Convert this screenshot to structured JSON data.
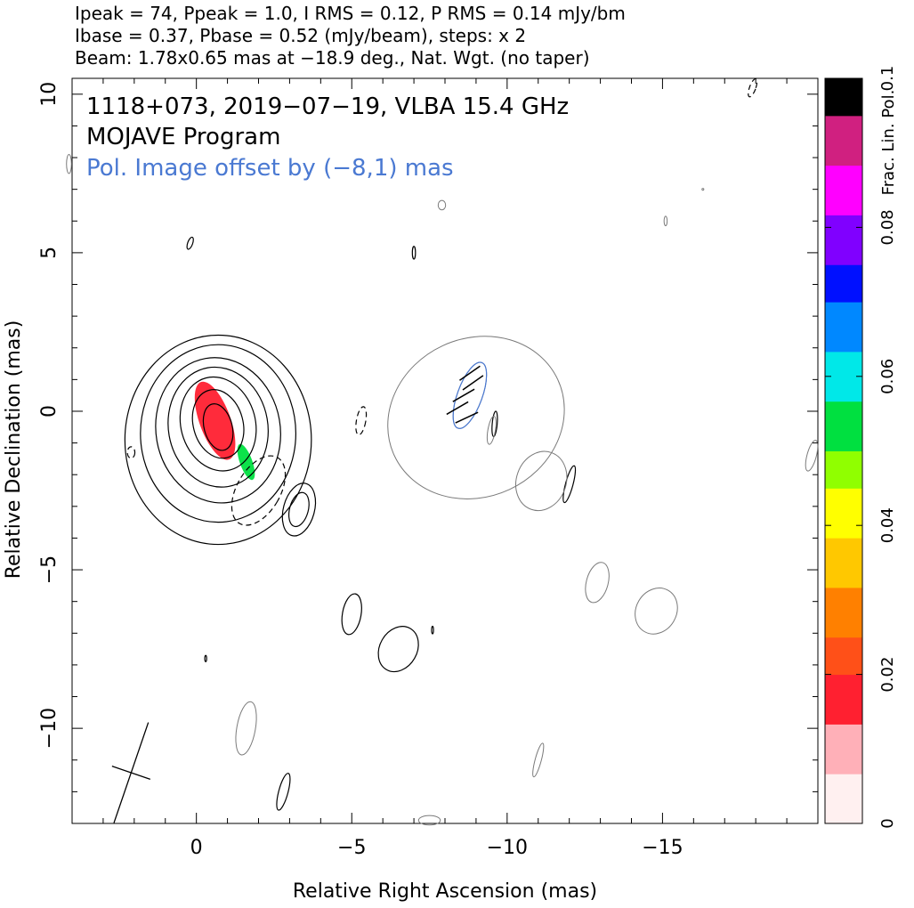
{
  "header": {
    "line1": "Ipeak = 74, Ppeak = 1.0, I RMS = 0.12, P RMS = 0.14 mJy/bm",
    "line2": "Ibase = 0.37, Pbase = 0.52 (mJy/beam), steps: x 2",
    "line3": "Beam: 1.78x0.65 mas at −18.9 deg., Nat. Wgt. (no taper)"
  },
  "chart_data": {
    "type": "contour",
    "annotations": {
      "source": "1118+073, 2019−07−19, VLBA 15.4 GHz",
      "program": "MOJAVE Program",
      "offset_note": "Pol. Image offset by (−8,1) mas"
    },
    "xlabel": "Relative Right Ascension (mas)",
    "ylabel": "Relative Declination (mas)",
    "xlim": [
      4,
      -20
    ],
    "ylim": [
      -13,
      10.5
    ],
    "x_ticks": [
      0,
      -5,
      -10,
      -15
    ],
    "x_tick_labels": [
      "0",
      "−5",
      "−10",
      "−15"
    ],
    "y_ticks": [
      10,
      5,
      0,
      -5,
      -10
    ],
    "y_tick_labels": [
      "10",
      "5",
      "0",
      "−5",
      "−10"
    ],
    "beam": {
      "major_mas": 1.78,
      "minor_mas": 0.65,
      "pa_deg": -18.9
    },
    "stokes_I": {
      "peak_mJy_per_beam": 74,
      "rms": 0.12,
      "base": 0.37,
      "step_factor": 2,
      "contours": [
        {
          "x": -0.7,
          "y": -0.9,
          "rx": 3.0,
          "ry": 3.3,
          "rot": 0
        },
        {
          "x": -0.7,
          "y": -0.7,
          "rx": 2.5,
          "ry": 2.8,
          "rot": 0
        },
        {
          "x": -0.7,
          "y": -0.6,
          "rx": 2.0,
          "ry": 2.3,
          "rot": -10
        },
        {
          "x": -0.7,
          "y": -0.5,
          "rx": 1.6,
          "ry": 1.9,
          "rot": -10
        },
        {
          "x": -0.7,
          "y": -0.4,
          "rx": 1.2,
          "ry": 1.5,
          "rot": -15
        },
        {
          "x": -0.7,
          "y": -0.4,
          "rx": 0.8,
          "ry": 1.1,
          "rot": -15
        },
        {
          "x": -0.7,
          "y": -0.5,
          "rx": 0.45,
          "ry": 0.75,
          "rot": -15
        },
        {
          "x": -3.3,
          "y": -3.1,
          "rx": 0.5,
          "ry": 0.85,
          "rot": 15
        },
        {
          "x": -3.3,
          "y": -3.1,
          "rx": 0.3,
          "ry": 0.55,
          "rot": 15
        },
        {
          "x": -5.0,
          "y": -6.4,
          "rx": 0.3,
          "ry": 0.65,
          "rot": 10
        },
        {
          "x": -6.5,
          "y": -7.5,
          "rx": 0.6,
          "ry": 0.75,
          "rot": 30
        },
        {
          "x": -2.8,
          "y": -12.0,
          "rx": 0.15,
          "ry": 0.6,
          "rot": 15
        },
        {
          "x": -9.6,
          "y": -0.4,
          "rx": 0.08,
          "ry": 0.4,
          "rot": 5
        },
        {
          "x": -12.0,
          "y": -2.3,
          "rx": 0.12,
          "ry": 0.6,
          "rot": 15
        },
        {
          "x": 0.2,
          "y": 5.3,
          "rx": 0.08,
          "ry": 0.2,
          "rot": 20
        },
        {
          "x": -7.0,
          "y": 5.0,
          "rx": 0.05,
          "ry": 0.2,
          "rot": 0
        },
        {
          "x": -7.6,
          "y": -6.9,
          "rx": 0.03,
          "ry": 0.12,
          "rot": 0
        },
        {
          "x": -0.3,
          "y": -7.8,
          "rx": 0.03,
          "ry": 0.1,
          "rot": 0
        }
      ],
      "negative_contours": [
        {
          "x": -2.0,
          "y": -2.5,
          "rx": 0.7,
          "ry": 1.2,
          "rot": 30
        },
        {
          "x": -5.3,
          "y": -0.3,
          "rx": 0.15,
          "ry": 0.45,
          "rot": 10
        },
        {
          "x": 2.1,
          "y": -1.3,
          "rx": 0.12,
          "ry": 0.18,
          "rot": 0
        },
        {
          "x": -17.9,
          "y": 10.2,
          "rx": 0.1,
          "ry": 0.3,
          "rot": 20
        }
      ]
    },
    "pol_contours": [
      {
        "x": -9.0,
        "y": -0.2,
        "rx": 2.9,
        "ry": 2.5,
        "rot": -25
      },
      {
        "x": -8.8,
        "y": 0.5,
        "rx": 0.4,
        "ry": 1.1,
        "rot": 20
      },
      {
        "x": -9.5,
        "y": -0.6,
        "rx": 0.12,
        "ry": 0.45,
        "rot": 10
      },
      {
        "x": -11.1,
        "y": -2.2,
        "rx": 0.8,
        "ry": 0.95,
        "rot": 20
      },
      {
        "x": -12.9,
        "y": -5.4,
        "rx": 0.35,
        "ry": 0.65,
        "rot": 15
      },
      {
        "x": -14.8,
        "y": -6.3,
        "rx": 0.65,
        "ry": 0.75,
        "rot": 30
      },
      {
        "x": -1.6,
        "y": -10.0,
        "rx": 0.3,
        "ry": 0.85,
        "rot": 10
      },
      {
        "x": -11.0,
        "y": -11.0,
        "rx": 0.1,
        "ry": 0.55,
        "rot": 15
      },
      {
        "x": -7.9,
        "y": 6.5,
        "rx": 0.12,
        "ry": 0.15,
        "rot": 0
      },
      {
        "x": -15.1,
        "y": 6.0,
        "rx": 0.05,
        "ry": 0.15,
        "rot": 0
      },
      {
        "x": -19.8,
        "y": -1.4,
        "rx": 0.15,
        "ry": 0.5,
        "rot": 15
      },
      {
        "x": 4.1,
        "y": 7.8,
        "rx": 0.08,
        "ry": 0.3,
        "rot": 0
      },
      {
        "x": -7.5,
        "y": -12.9,
        "rx": 0.35,
        "ry": 0.15,
        "rot": 0
      },
      {
        "x": -16.3,
        "y": 7.0,
        "rx": 0.03,
        "ry": 0.03,
        "rot": 0
      }
    ],
    "evpa_ticks": [
      {
        "x": -8.8,
        "y": 1.2,
        "angle": 35
      },
      {
        "x": -8.6,
        "y": 0.5,
        "angle": 30
      },
      {
        "x": -8.9,
        "y": 0.9,
        "angle": 35
      },
      {
        "x": -8.4,
        "y": 0.1,
        "angle": 30
      },
      {
        "x": -8.7,
        "y": -0.2,
        "angle": 25
      }
    ],
    "frac_pol_regions": [
      {
        "x": -0.6,
        "y": -0.3,
        "rx": 0.5,
        "ry": 1.3,
        "rot": -20,
        "frac": 0.016
      },
      {
        "x": -1.6,
        "y": -1.6,
        "rx": 0.2,
        "ry": 0.6,
        "rot": -20,
        "frac": 0.05
      }
    ],
    "colorbar": {
      "label": "Frac. Lin. Pol.",
      "range": [
        0,
        0.1
      ],
      "ticks": [
        0,
        0.02,
        0.04,
        0.06,
        0.08,
        0.1
      ],
      "tick_labels": [
        "0",
        "0.02",
        "0.04",
        "0.06",
        "0.08",
        "0.1"
      ],
      "colors": [
        "#fff0f0",
        "#ffb0b8",
        "#ff2030",
        "#ff5018",
        "#ff8000",
        "#ffc800",
        "#ffff00",
        "#90ff00",
        "#00e040",
        "#00e8e8",
        "#0088ff",
        "#0010ff",
        "#8000ff",
        "#ff00ff",
        "#d02080",
        "#000000"
      ]
    },
    "grid": false,
    "colors": {
      "I": "#000000",
      "pol": "#7a7a7a",
      "pol_text": "#4a79d2"
    }
  }
}
